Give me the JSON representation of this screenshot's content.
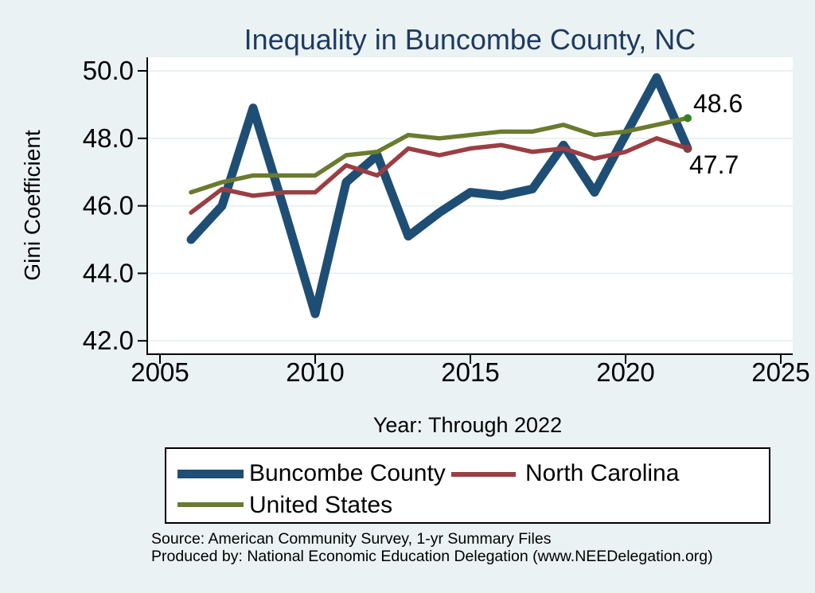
{
  "title": "Inequality in Buncombe County, NC",
  "y_axis": {
    "label": "Gini Coefficient",
    "tick_labels": [
      "50.0",
      "48.0",
      "46.0",
      "44.0",
      "42.0"
    ]
  },
  "x_axis": {
    "label": "Year: Through 2022",
    "tick_labels": [
      "2005",
      "2010",
      "2015",
      "2020",
      "2025"
    ]
  },
  "end_labels": [
    {
      "text": "48.6",
      "series": "United States"
    },
    {
      "text": "47.7",
      "series": "Buncombe County / North Carolina"
    }
  ],
  "legend": {
    "items": [
      {
        "label": "Buncombe County",
        "color": "#1F4E75",
        "thickness": 11
      },
      {
        "label": "North Carolina",
        "color": "#9B3E43",
        "thickness": 6
      },
      {
        "label": "United States",
        "color": "#6A7B2F",
        "thickness": 6
      }
    ]
  },
  "footer": {
    "line1": "Source: American Community Survey, 1-yr Summary Files",
    "line2": "Produced by: National Economic Education Delegation (www.NEEDelegation.org)"
  },
  "colors": {
    "background": "#EAF2F3",
    "plot_background": "#FFFFFF",
    "gridline": "#E2EDEF",
    "axis": "#000000",
    "title": "#1E3A5F"
  },
  "chart_data": {
    "type": "line",
    "title": "Inequality in Buncombe County, NC",
    "xlabel": "Year: Through 2022",
    "ylabel": "Gini Coefficient",
    "grid": true,
    "legend_position": "bottom",
    "xlim": [
      2004.6,
      2025.4
    ],
    "ylim": [
      41.6,
      50.4
    ],
    "x_ticks": [
      2005,
      2010,
      2015,
      2020,
      2025
    ],
    "y_ticks": [
      50,
      48,
      46,
      44,
      42
    ],
    "x": [
      2006,
      2007,
      2008,
      2009,
      2010,
      2011,
      2012,
      2013,
      2014,
      2015,
      2016,
      2017,
      2018,
      2019,
      2020,
      2021,
      2022
    ],
    "series": [
      {
        "name": "Buncombe County",
        "color": "#1F4E75",
        "stroke_width": 11,
        "values": [
          45.0,
          46.0,
          48.9,
          45.9,
          42.8,
          46.7,
          47.5,
          45.1,
          45.8,
          46.4,
          46.3,
          46.5,
          47.8,
          46.4,
          48.1,
          49.8,
          47.7
        ]
      },
      {
        "name": "North Carolina",
        "color": "#9B3E43",
        "stroke_width": 5.5,
        "values": [
          45.8,
          46.5,
          46.3,
          46.4,
          46.4,
          47.2,
          46.9,
          47.7,
          47.5,
          47.7,
          47.8,
          47.6,
          47.7,
          47.4,
          47.6,
          48.0,
          47.7
        ]
      },
      {
        "name": "United States",
        "color": "#6A7B2F",
        "stroke_width": 5.5,
        "values": [
          46.4,
          46.7,
          46.9,
          46.9,
          46.9,
          47.5,
          47.6,
          48.1,
          48.0,
          48.1,
          48.2,
          48.2,
          48.4,
          48.1,
          48.2,
          48.4,
          48.6
        ]
      }
    ],
    "end_markers": [
      {
        "series": "United States",
        "color": "#338125"
      },
      {
        "series": "North Carolina",
        "color": "#8C3A3F"
      }
    ]
  }
}
